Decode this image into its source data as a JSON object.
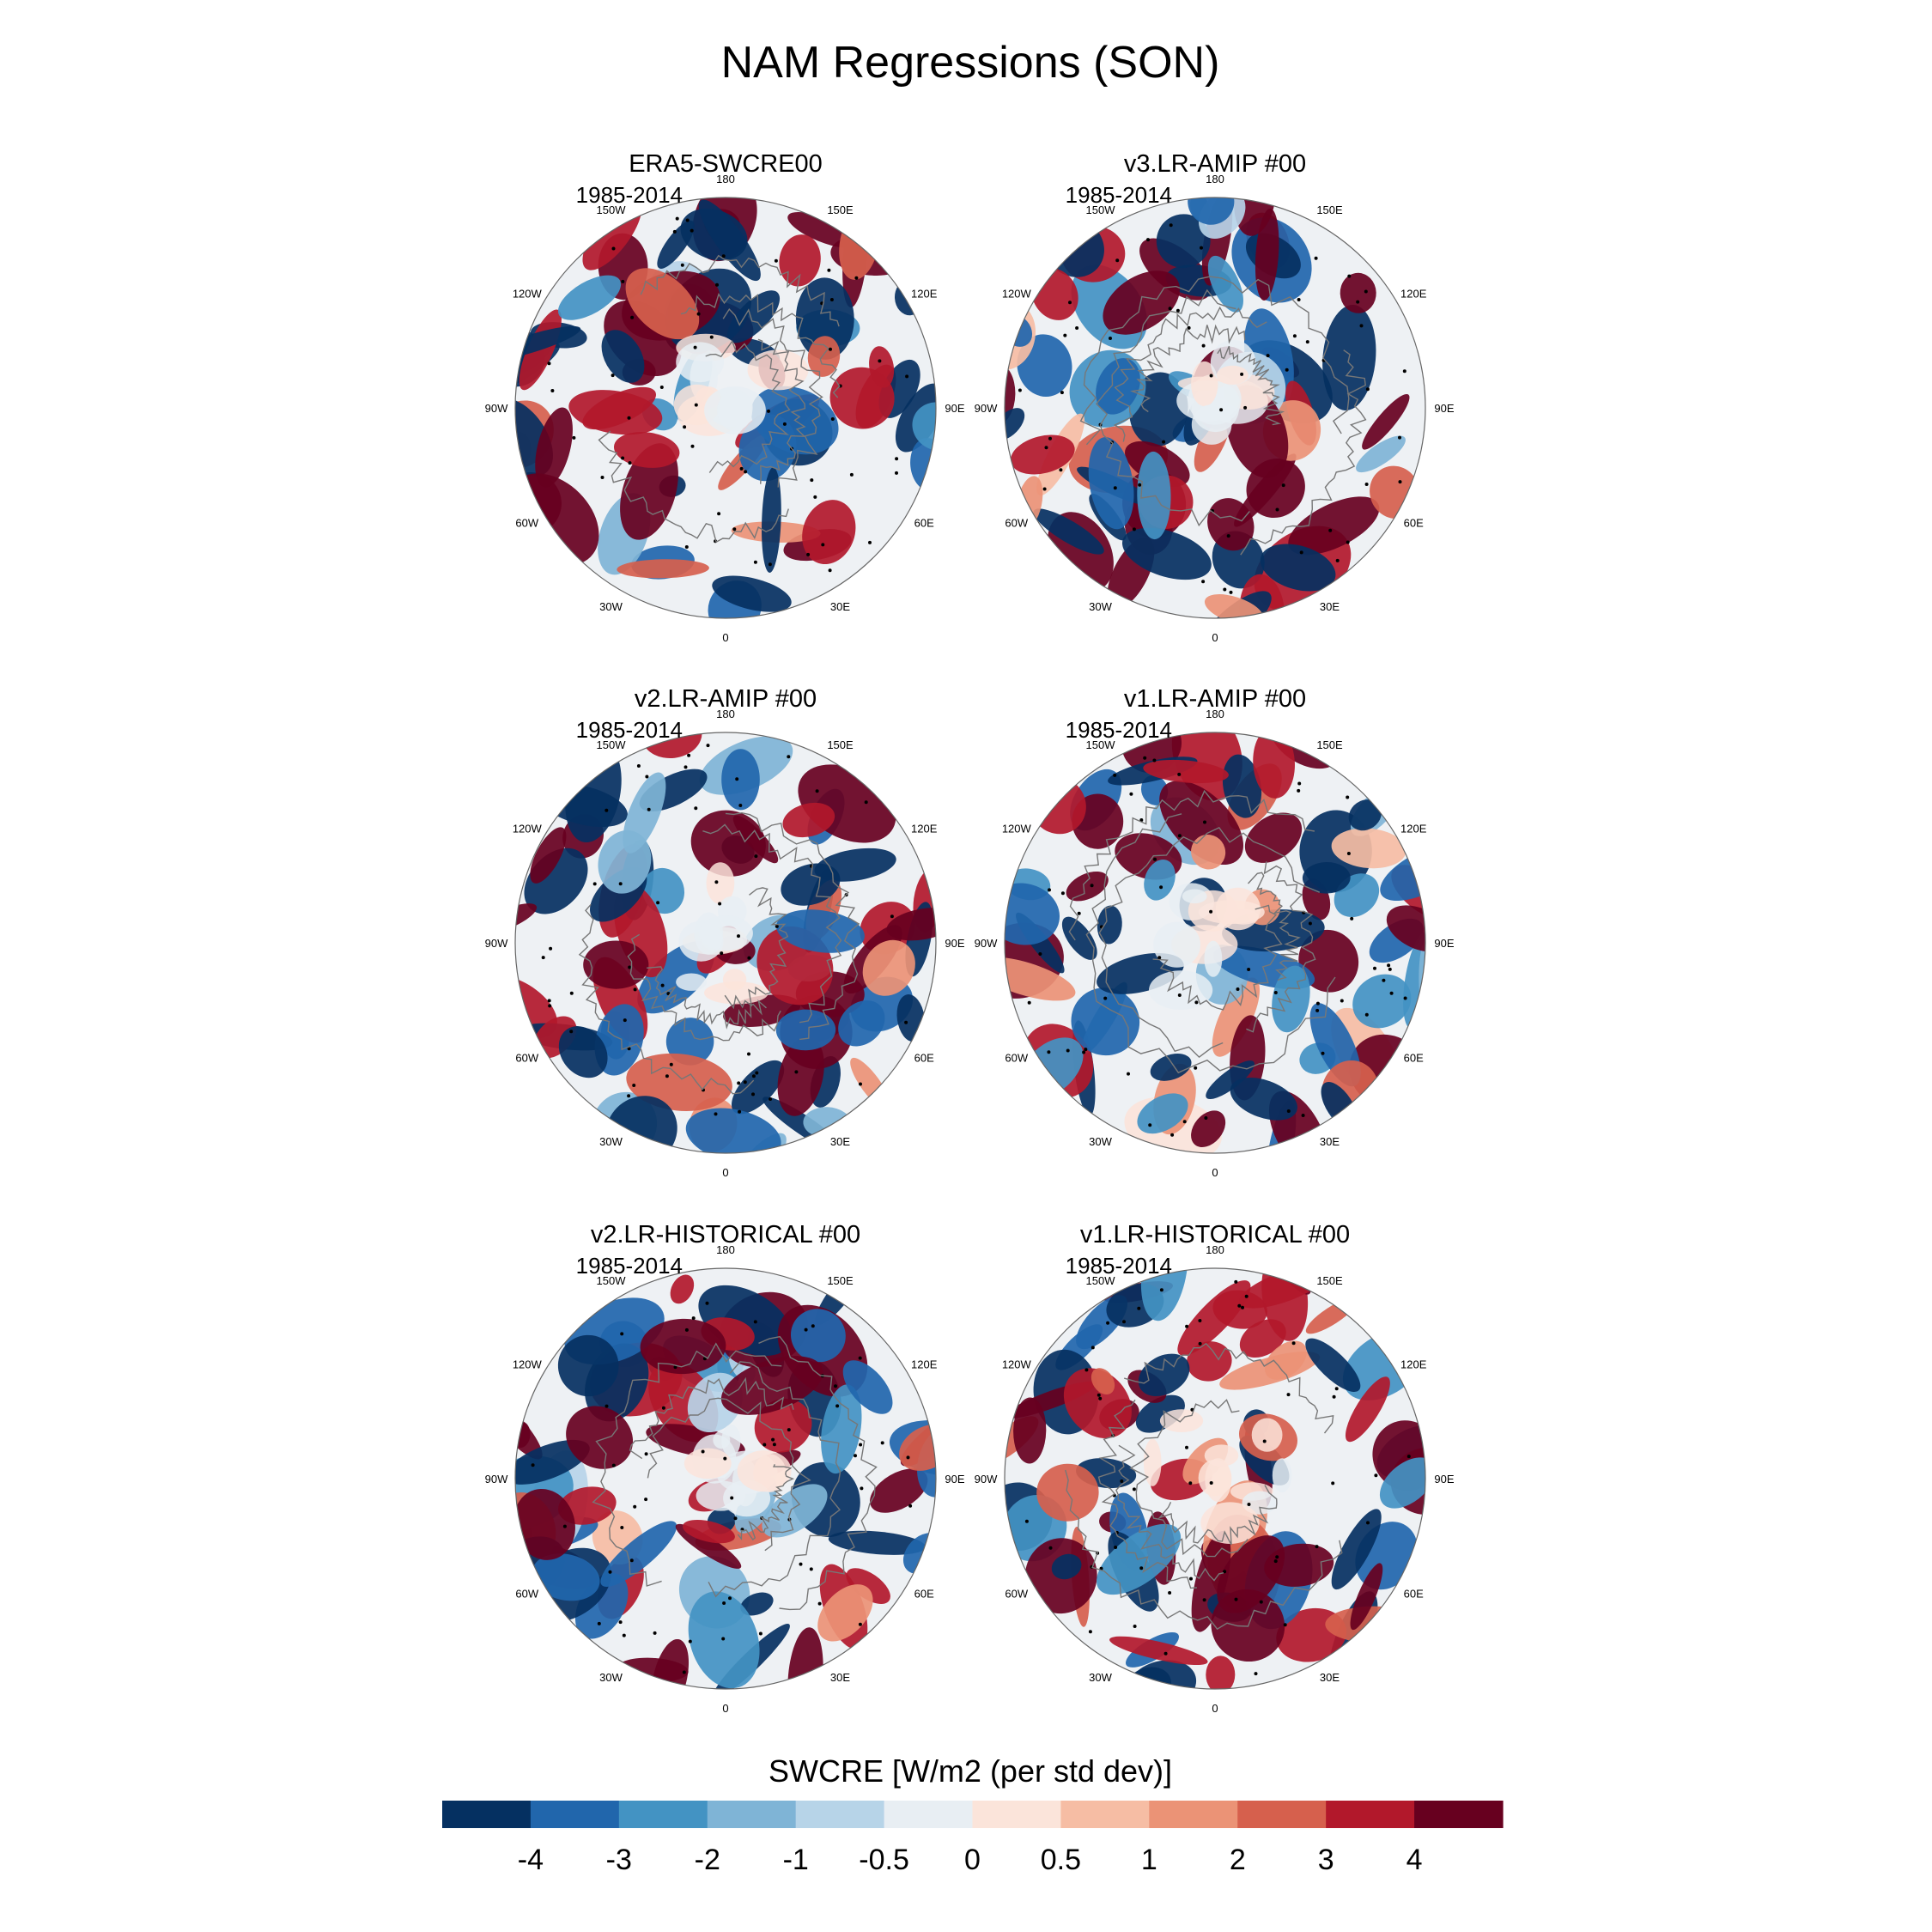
{
  "figure": {
    "title": "NAM Regressions (SON)"
  },
  "panels": [
    {
      "title": "ERA5-SWCRE00",
      "period": "1985-2014"
    },
    {
      "title": "v3.LR-AMIP  #00",
      "period": "1985-2014"
    },
    {
      "title": "v2.LR-AMIP  #00",
      "period": "1985-2014"
    },
    {
      "title": "v1.LR-AMIP  #00",
      "period": "1985-2014"
    },
    {
      "title": "v2.LR-HISTORICAL  #00",
      "period": "1985-2014"
    },
    {
      "title": "v1.LR-HISTORICAL  #00",
      "period": "1985-2014"
    }
  ],
  "longitude_labels": [
    "180",
    "150E",
    "120E",
    "90E",
    "60E",
    "30E",
    "0",
    "30W",
    "60W",
    "90W",
    "120W",
    "150W"
  ],
  "colorbar": {
    "title": "SWCRE [W/m2 (per std dev)]",
    "tick_labels": [
      "-4",
      "-3",
      "-2",
      "-1",
      "-0.5",
      "0",
      "0.5",
      "1",
      "2",
      "3",
      "4"
    ],
    "colors": [
      "#053061",
      "#2166ac",
      "#4393c3",
      "#7fb4d6",
      "#b7d4e8",
      "#e8eef3",
      "#fbe4da",
      "#f6bda4",
      "#eb9376",
      "#d6604d",
      "#b2182b",
      "#67001f"
    ]
  }
}
